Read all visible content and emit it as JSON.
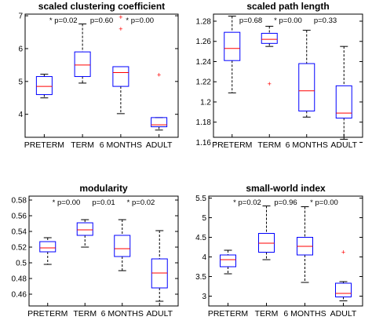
{
  "figure": {
    "colors": {
      "box": "#0000ff",
      "median": "#ff0000",
      "whisker": "#000000",
      "outlier": "#ff0000",
      "axis": "#000000"
    }
  },
  "chart_data": [
    {
      "type": "box",
      "title": "scaled clustering coefficient",
      "categories": [
        "PRETERM",
        "TERM",
        "6 MONTHS",
        "ADULT"
      ],
      "ylim": [
        3.3,
        7.05
      ],
      "yticks": [
        4,
        5,
        6,
        7
      ],
      "ytick_labels": [
        "4",
        "5",
        "6",
        "7"
      ],
      "boxes": [
        {
          "whisker_low": 4.5,
          "q1": 4.6,
          "median": 4.85,
          "q3": 5.15,
          "whisker_high": 5.22,
          "outliers": []
        },
        {
          "whisker_low": 4.95,
          "q1": 5.15,
          "median": 5.5,
          "q3": 5.9,
          "whisker_high": 6.75,
          "outliers": []
        },
        {
          "whisker_low": 4.02,
          "q1": 4.85,
          "median": 5.27,
          "q3": 5.45,
          "whisker_high": 5.45,
          "outliers": [
            6.6,
            6.95
          ]
        },
        {
          "whisker_low": 3.52,
          "q1": 3.62,
          "median": 3.68,
          "q3": 3.9,
          "whisker_high": 3.9,
          "outliers": [
            5.2
          ]
        }
      ],
      "pvalues": [
        {
          "label": "p=0.02",
          "star": true
        },
        {
          "label": "p=0.60",
          "star": false
        },
        {
          "label": "p=0.00",
          "star": true
        }
      ]
    },
    {
      "type": "box",
      "title": "scaled path length",
      "categories": [
        "PRETERM",
        "TERM",
        "6 MONTHS",
        "ADULT"
      ],
      "ylim": [
        1.165,
        1.287
      ],
      "yticks": [
        1.16,
        1.18,
        1.2,
        1.22,
        1.24,
        1.26,
        1.28
      ],
      "ytick_labels": [
        "1.16",
        "1.18",
        "1.2",
        "1.22",
        "1.24",
        "1.26",
        "1.28"
      ],
      "boxes": [
        {
          "whisker_low": 1.209,
          "q1": 1.241,
          "median": 1.253,
          "q3": 1.269,
          "whisker_high": 1.285,
          "outliers": []
        },
        {
          "whisker_low": 1.255,
          "q1": 1.258,
          "median": 1.262,
          "q3": 1.268,
          "whisker_high": 1.275,
          "outliers": [
            1.218
          ]
        },
        {
          "whisker_low": 1.185,
          "q1": 1.191,
          "median": 1.211,
          "q3": 1.238,
          "whisker_high": 1.271,
          "outliers": []
        },
        {
          "whisker_low": 1.163,
          "q1": 1.184,
          "median": 1.189,
          "q3": 1.216,
          "whisker_high": 1.255,
          "outliers": []
        }
      ],
      "pvalues": [
        {
          "label": "p=0.68",
          "star": false
        },
        {
          "label": "p=0.00",
          "star": true
        },
        {
          "label": "p=0.33",
          "star": false
        }
      ]
    },
    {
      "type": "box",
      "title": "modularity",
      "categories": [
        "PRETERM",
        "TERM",
        "6 MONTHS",
        "ADULT"
      ],
      "ylim": [
        0.445,
        0.585
      ],
      "yticks": [
        0.46,
        0.48,
        0.5,
        0.52,
        0.54,
        0.56,
        0.58
      ],
      "ytick_labels": [
        "0.46",
        "0.48",
        "0.5",
        "0.52",
        "0.54",
        "0.56",
        "0.58"
      ],
      "boxes": [
        {
          "whisker_low": 0.498,
          "q1": 0.514,
          "median": 0.519,
          "q3": 0.527,
          "whisker_high": 0.532,
          "outliers": []
        },
        {
          "whisker_low": 0.52,
          "q1": 0.535,
          "median": 0.542,
          "q3": 0.551,
          "whisker_high": 0.555,
          "outliers": []
        },
        {
          "whisker_low": 0.49,
          "q1": 0.508,
          "median": 0.518,
          "q3": 0.535,
          "whisker_high": 0.555,
          "outliers": []
        },
        {
          "whisker_low": 0.451,
          "q1": 0.468,
          "median": 0.487,
          "q3": 0.505,
          "whisker_high": 0.541,
          "outliers": []
        }
      ],
      "pvalues": [
        {
          "label": "p=0.00",
          "star": true
        },
        {
          "label": "p=0.01",
          "star": false
        },
        {
          "label": "p=0.02",
          "star": true
        }
      ]
    },
    {
      "type": "box",
      "title": "small-world index",
      "categories": [
        "PRETERM",
        "TERM",
        "6 MONTHS",
        "ADULT"
      ],
      "ylim": [
        2.75,
        5.55
      ],
      "yticks": [
        3,
        3.5,
        4,
        4.5,
        5,
        5.5
      ],
      "ytick_labels": [
        "3",
        "3.5",
        "4",
        "4.5",
        "5",
        "5.5"
      ],
      "boxes": [
        {
          "whisker_low": 3.57,
          "q1": 3.75,
          "median": 3.93,
          "q3": 4.05,
          "whisker_high": 4.17,
          "outliers": []
        },
        {
          "whisker_low": 3.93,
          "q1": 4.12,
          "median": 4.35,
          "q3": 4.6,
          "whisker_high": 5.3,
          "outliers": []
        },
        {
          "whisker_low": 3.35,
          "q1": 4.05,
          "median": 4.27,
          "q3": 4.5,
          "whisker_high": 5.28,
          "outliers": []
        },
        {
          "whisker_low": 2.88,
          "q1": 2.98,
          "median": 3.07,
          "q3": 3.33,
          "whisker_high": 3.37,
          "outliers": [
            4.12
          ]
        }
      ],
      "pvalues": [
        {
          "label": "p=0.02",
          "star": true
        },
        {
          "label": "p=0.96",
          "star": false
        },
        {
          "label": "p=0.00",
          "star": true
        }
      ]
    }
  ]
}
